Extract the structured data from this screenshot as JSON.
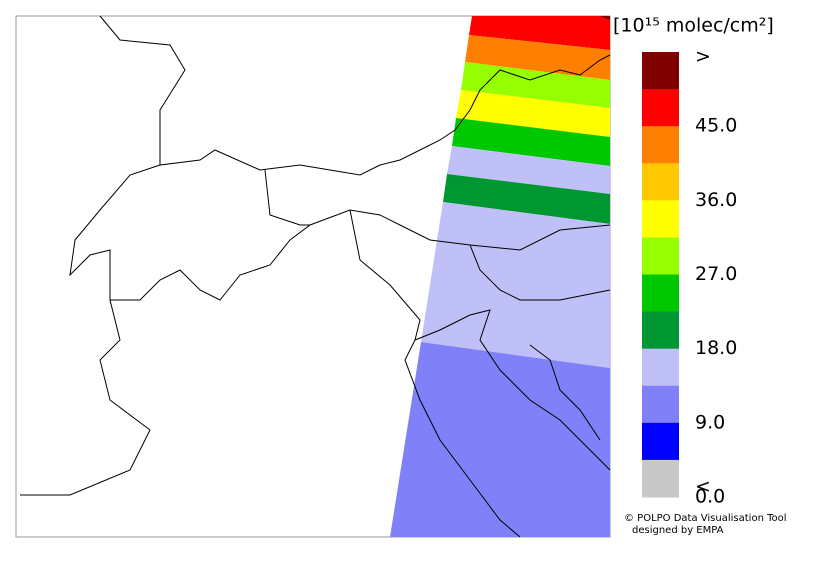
{
  "colorbar": {
    "title": "[10¹⁵ molec/cm²]",
    "labels": [
      ">",
      "45.0",
      "36.0",
      "27.0",
      "18.0",
      "9.0",
      "0.0",
      "<"
    ],
    "colors": [
      "#800000",
      "#ff0000",
      "#ff8000",
      "#ffc800",
      "#ffff00",
      "#96ff00",
      "#00c800",
      "#009632",
      "#c0c0f8",
      "#8080f8",
      "#0000ff",
      "#c8c8c8"
    ]
  },
  "credit": [
    "© POLPO Data Visualisation Tool",
    "designed by EMPA"
  ]
}
